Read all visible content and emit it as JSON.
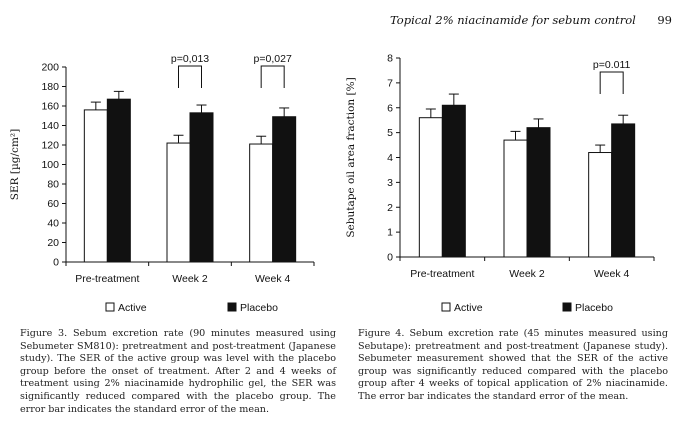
{
  "header": {
    "running_title": "Topical 2% niacinamide for sebum control",
    "page_number": "99"
  },
  "colors": {
    "active": "#ffffff",
    "placebo": "#111111",
    "stroke": "#111111"
  },
  "chart_data": [
    {
      "type": "bar",
      "title": "",
      "xlabel": "",
      "ylabel": "SER [µg/cm²]",
      "ylim": [
        0,
        200
      ],
      "ytick_step": 20,
      "yticks": [
        "0",
        "20",
        "40",
        "60",
        "80",
        "100",
        "120",
        "140",
        "160",
        "180",
        "200"
      ],
      "categories": [
        "Pre-treatment",
        "Week 2",
        "Week 4"
      ],
      "series": [
        {
          "name": "Active",
          "color": "#ffffff",
          "values": [
            156,
            122,
            121
          ],
          "errors": [
            8,
            8,
            8
          ]
        },
        {
          "name": "Placebo",
          "color": "#111111",
          "values": [
            167,
            153,
            149
          ],
          "errors": [
            8,
            8,
            9
          ]
        }
      ],
      "annotations": [
        {
          "category_index": 1,
          "text": "p=0,013"
        },
        {
          "category_index": 2,
          "text": "p=0,027"
        }
      ],
      "legend": [
        "Active",
        "Placebo"
      ],
      "legend_position": "bottom-center",
      "grid": false
    },
    {
      "type": "bar",
      "title": "",
      "xlabel": "",
      "ylabel": "Sebutape oil area fraction [%]",
      "ylim": [
        0,
        8
      ],
      "ytick_step": 1,
      "yticks": [
        "0",
        "1",
        "2",
        "3",
        "4",
        "5",
        "6",
        "7",
        "8"
      ],
      "categories": [
        "Pre-treatment",
        "Week 2",
        "Week 4"
      ],
      "series": [
        {
          "name": "Active",
          "color": "#ffffff",
          "values": [
            5.6,
            4.7,
            4.2
          ],
          "errors": [
            0.35,
            0.35,
            0.3
          ]
        },
        {
          "name": "Placebo",
          "color": "#111111",
          "values": [
            6.1,
            5.2,
            5.35
          ],
          "errors": [
            0.45,
            0.35,
            0.35
          ]
        }
      ],
      "annotations": [
        {
          "category_index": 2,
          "text": "p=0.011"
        }
      ],
      "legend": [
        "Active",
        "Placebo"
      ],
      "legend_position": "bottom-center",
      "grid": false
    }
  ],
  "captions": {
    "left": "Figure 3. Sebum excretion rate (90 minutes measured using Sebumeter SM810): pretreatment and post-treatment (Japanese study). The SER of the active group was level with the placebo group before the onset of treatment. After 2 and 4 weeks of treatment using 2% niacinamide hydrophilic gel, the SER was significantly reduced compared with the placebo group. The error bar indicates the standard error of the mean.",
    "right": "Figure 4. Sebum excretion rate (45 minutes measured using Sebutape): pretreatment and post-treatment (Japanese study). Sebumeter measurement showed that the SER of the active group was significantly reduced compared with the placebo group after 4 weeks of topical application of 2% niacinamide. The error bar indicates the standard error of the mean."
  }
}
